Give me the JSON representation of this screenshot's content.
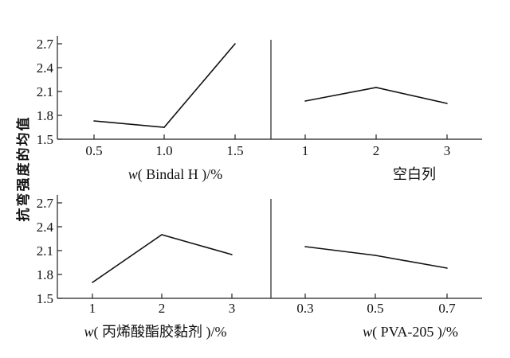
{
  "ylabel": "抗弯强度的均值",
  "chart_data": [
    {
      "type": "line",
      "xlabel_prefix": "w",
      "xlabel_rest": "( Bindal H )/%",
      "x": [
        0.5,
        1.0,
        1.5
      ],
      "values": [
        1.73,
        1.65,
        2.7
      ],
      "xticks": [
        "0.5",
        "1.0",
        "1.5"
      ],
      "yticks": [
        "1.5",
        "1.8",
        "2.1",
        "2.4",
        "2.7"
      ],
      "ylim": [
        1.5,
        2.7
      ]
    },
    {
      "type": "line",
      "xlabel_prefix": "",
      "xlabel_rest": "空白列",
      "x": [
        1,
        2,
        3
      ],
      "values": [
        1.98,
        2.15,
        1.95
      ],
      "xticks": [
        "1",
        "2",
        "3"
      ],
      "ylim": [
        1.5,
        2.7
      ]
    },
    {
      "type": "line",
      "xlabel_prefix": "w",
      "xlabel_rest": "( 丙烯酸酯胶黏剂 )/%",
      "x": [
        1,
        2,
        3
      ],
      "values": [
        1.7,
        2.3,
        2.05
      ],
      "xticks": [
        "1",
        "2",
        "3"
      ],
      "yticks": [
        "1.5",
        "1.8",
        "2.1",
        "2.4",
        "2.7"
      ],
      "ylim": [
        1.5,
        2.7
      ]
    },
    {
      "type": "line",
      "xlabel_prefix": "w",
      "xlabel_rest": "( PVA-205 )/%",
      "x": [
        0.3,
        0.5,
        0.7
      ],
      "values": [
        2.15,
        2.04,
        1.88
      ],
      "xticks": [
        "0.3",
        "0.5",
        "0.7"
      ],
      "ylim": [
        1.5,
        2.7
      ]
    }
  ]
}
